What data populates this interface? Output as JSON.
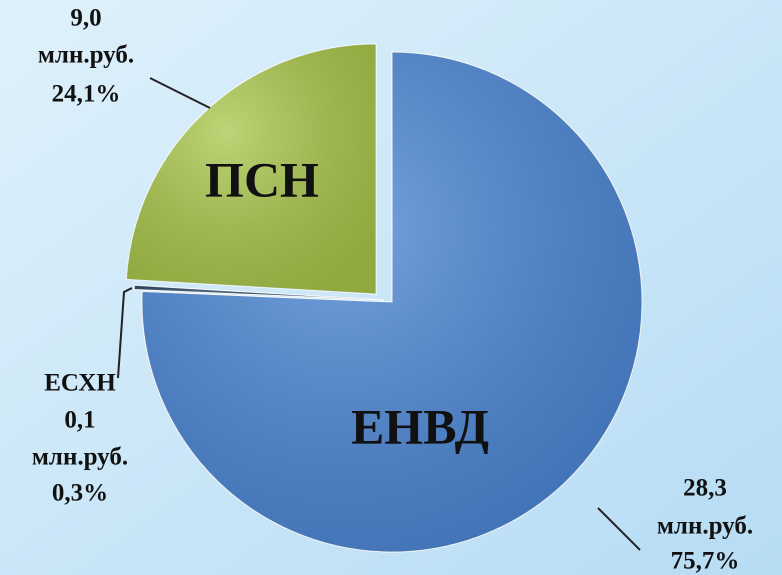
{
  "chart_data": {
    "type": "pie",
    "unit": "млн.руб.",
    "categories": [
      "ЕНВД",
      "ЕСХН",
      "ПСН"
    ],
    "values": [
      28.3,
      0.1,
      9.0
    ],
    "value_labels": [
      "28,3",
      "0,1",
      "9,0"
    ],
    "percents": [
      75.7,
      0.3,
      24.1
    ],
    "percent_labels": [
      "75,7%",
      "0,3%",
      "24,1%"
    ],
    "colors": [
      "#4a86d6",
      "#1f3d5c",
      "#a9c74a"
    ]
  }
}
